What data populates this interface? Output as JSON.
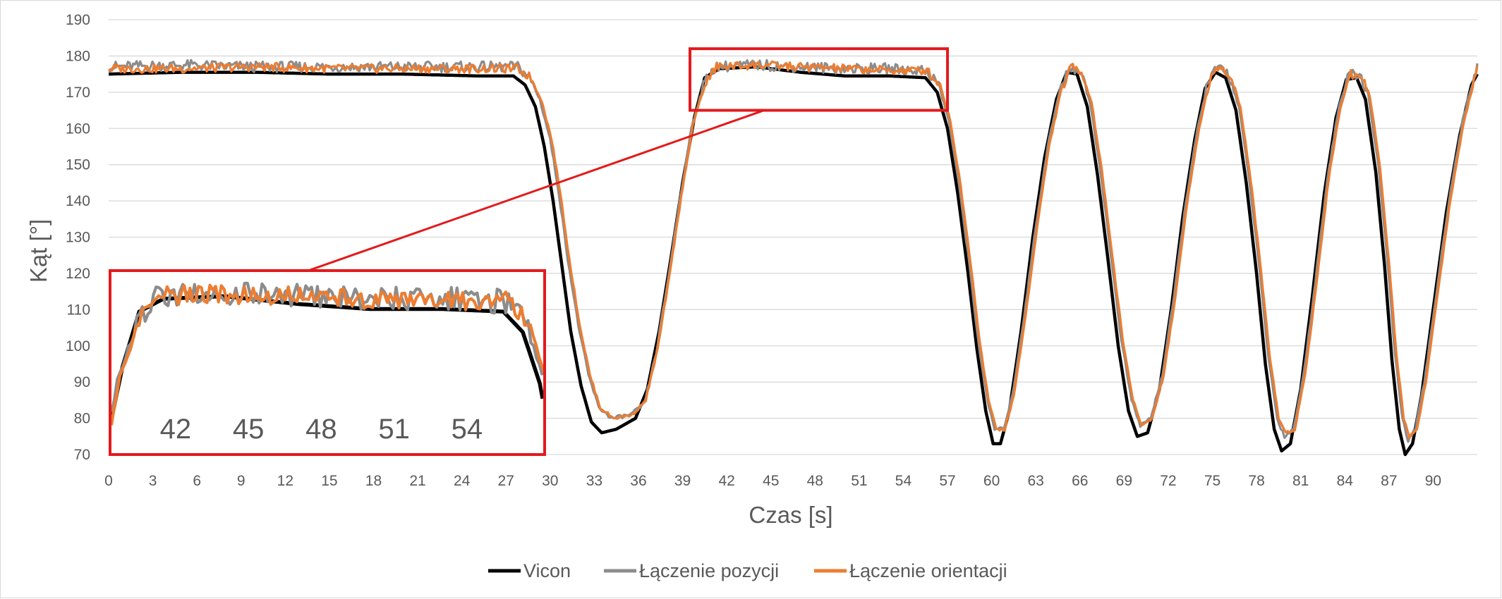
{
  "chart_data": {
    "type": "line",
    "title": "",
    "xlabel": "Czas [s]",
    "ylabel": "Kąt [°]",
    "xlim": [
      0,
      93
    ],
    "ylim": [
      70,
      190
    ],
    "grid": "horizontal",
    "legend_position": "bottom",
    "x_ticks": [
      "0",
      "3",
      "6",
      "9",
      "12",
      "15",
      "18",
      "21",
      "24",
      "27",
      "30",
      "33",
      "36",
      "39",
      "42",
      "45",
      "48",
      "51",
      "54",
      "57",
      "60",
      "63",
      "66",
      "69",
      "72",
      "75",
      "78",
      "81",
      "84",
      "87",
      "90"
    ],
    "y_ticks": [
      "70",
      "80",
      "90",
      "100",
      "110",
      "120",
      "130",
      "140",
      "150",
      "160",
      "170",
      "180",
      "190"
    ],
    "series": [
      {
        "name": "Vicon",
        "color": "#000000",
        "points": [
          [
            0,
            175
          ],
          [
            5,
            175.5
          ],
          [
            10,
            175.5
          ],
          [
            15,
            175
          ],
          [
            20,
            175
          ],
          [
            25,
            174.5
          ],
          [
            27.5,
            174.5
          ],
          [
            28.3,
            172
          ],
          [
            29,
            166
          ],
          [
            29.6,
            155
          ],
          [
            30.2,
            140
          ],
          [
            30.8,
            122
          ],
          [
            31.4,
            104
          ],
          [
            32.1,
            89
          ],
          [
            32.8,
            79
          ],
          [
            33.5,
            76
          ],
          [
            34.5,
            77
          ],
          [
            35.8,
            80
          ],
          [
            36.6,
            88
          ],
          [
            37.4,
            104
          ],
          [
            38.2,
            124
          ],
          [
            39.0,
            145
          ],
          [
            39.8,
            163
          ],
          [
            40.5,
            174
          ],
          [
            41.5,
            176.5
          ],
          [
            44,
            177
          ],
          [
            47,
            175.5
          ],
          [
            50,
            174.5
          ],
          [
            53,
            174.5
          ],
          [
            55.5,
            174
          ],
          [
            56.3,
            170
          ],
          [
            57,
            160
          ],
          [
            57.7,
            142
          ],
          [
            58.4,
            120
          ],
          [
            59.0,
            99
          ],
          [
            59.6,
            82
          ],
          [
            60.1,
            73
          ],
          [
            60.6,
            73
          ],
          [
            61.2,
            82
          ],
          [
            62.0,
            104
          ],
          [
            62.8,
            130
          ],
          [
            63.6,
            152
          ],
          [
            64.4,
            168
          ],
          [
            65.1,
            175.5
          ],
          [
            65.8,
            175
          ],
          [
            66.5,
            166
          ],
          [
            67.2,
            147
          ],
          [
            67.9,
            124
          ],
          [
            68.6,
            100
          ],
          [
            69.3,
            82
          ],
          [
            69.9,
            75
          ],
          [
            70.6,
            76
          ],
          [
            71.4,
            88
          ],
          [
            72.2,
            110
          ],
          [
            73.0,
            136
          ],
          [
            73.8,
            157
          ],
          [
            74.5,
            171
          ],
          [
            75.2,
            175.5
          ],
          [
            75.9,
            174
          ],
          [
            76.6,
            165
          ],
          [
            77.3,
            145
          ],
          [
            78.0,
            120
          ],
          [
            78.6,
            95
          ],
          [
            79.2,
            77
          ],
          [
            79.7,
            71
          ],
          [
            80.3,
            73
          ],
          [
            81.0,
            88
          ],
          [
            81.8,
            114
          ],
          [
            82.6,
            142
          ],
          [
            83.4,
            163
          ],
          [
            84.1,
            173.5
          ],
          [
            84.8,
            174
          ],
          [
            85.4,
            168
          ],
          [
            86.1,
            148
          ],
          [
            86.7,
            122
          ],
          [
            87.2,
            96
          ],
          [
            87.7,
            77
          ],
          [
            88.1,
            70
          ],
          [
            88.6,
            73
          ],
          [
            89.2,
            86
          ],
          [
            90.0,
            110
          ],
          [
            90.9,
            137
          ],
          [
            91.8,
            158
          ],
          [
            92.6,
            172
          ],
          [
            93,
            175
          ]
        ]
      },
      {
        "name": "Łączenie pozycji",
        "color": "#8c8c8c",
        "points": [
          [
            0,
            177
          ],
          [
            5,
            177.5
          ],
          [
            10,
            177
          ],
          [
            15,
            177
          ],
          [
            20,
            177
          ],
          [
            25,
            177
          ],
          [
            27.8,
            177
          ],
          [
            28.6,
            174
          ],
          [
            29.3,
            168
          ],
          [
            30.0,
            157
          ],
          [
            30.6,
            142
          ],
          [
            31.2,
            124
          ],
          [
            31.9,
            106
          ],
          [
            32.6,
            92
          ],
          [
            33.3,
            83
          ],
          [
            34.2,
            80
          ],
          [
            35.5,
            81
          ],
          [
            36.4,
            84
          ],
          [
            37.2,
            98
          ],
          [
            38.0,
            118
          ],
          [
            38.8,
            140
          ],
          [
            39.6,
            160
          ],
          [
            40.4,
            172
          ],
          [
            41.2,
            177
          ],
          [
            44,
            177.5
          ],
          [
            47,
            177
          ],
          [
            50,
            176.5
          ],
          [
            53,
            176.5
          ],
          [
            55.6,
            176
          ],
          [
            56.4,
            172
          ],
          [
            57.1,
            162
          ],
          [
            57.8,
            144
          ],
          [
            58.5,
            122
          ],
          [
            59.1,
            101
          ],
          [
            59.7,
            85
          ],
          [
            60.2,
            77
          ],
          [
            60.8,
            77
          ],
          [
            61.4,
            86
          ],
          [
            62.2,
            108
          ],
          [
            63.0,
            133
          ],
          [
            63.8,
            155
          ],
          [
            64.6,
            170
          ],
          [
            65.3,
            177
          ],
          [
            66.0,
            176
          ],
          [
            66.7,
            167
          ],
          [
            67.4,
            148
          ],
          [
            68.1,
            125
          ],
          [
            68.8,
            102
          ],
          [
            69.5,
            85
          ],
          [
            70.1,
            78
          ],
          [
            70.8,
            80
          ],
          [
            71.6,
            92
          ],
          [
            72.4,
            114
          ],
          [
            73.2,
            140
          ],
          [
            74.0,
            160
          ],
          [
            74.7,
            173
          ],
          [
            75.4,
            177
          ],
          [
            76.1,
            175
          ],
          [
            76.8,
            166
          ],
          [
            77.5,
            146
          ],
          [
            78.2,
            121
          ],
          [
            78.8,
            97
          ],
          [
            79.4,
            80
          ],
          [
            79.9,
            75
          ],
          [
            80.5,
            77
          ],
          [
            81.2,
            92
          ],
          [
            82.0,
            118
          ],
          [
            82.8,
            146
          ],
          [
            83.6,
            166
          ],
          [
            84.3,
            175
          ],
          [
            85.0,
            175
          ],
          [
            85.6,
            169
          ],
          [
            86.3,
            149
          ],
          [
            86.9,
            123
          ],
          [
            87.4,
            98
          ],
          [
            87.9,
            80
          ],
          [
            88.3,
            74
          ],
          [
            88.8,
            77
          ],
          [
            89.4,
            90
          ],
          [
            90.2,
            114
          ],
          [
            91.1,
            141
          ],
          [
            92.0,
            162
          ],
          [
            92.8,
            175
          ],
          [
            93,
            177
          ]
        ]
      },
      {
        "name": "Łączenie orientacji",
        "color": "#ed7d31",
        "points": [
          [
            0,
            176.5
          ],
          [
            5,
            176.5
          ],
          [
            10,
            177
          ],
          [
            15,
            176.5
          ],
          [
            20,
            176.5
          ],
          [
            25,
            176.5
          ],
          [
            27.8,
            176.5
          ],
          [
            28.7,
            174
          ],
          [
            29.4,
            168
          ],
          [
            30.1,
            157
          ],
          [
            30.7,
            142
          ],
          [
            31.3,
            124
          ],
          [
            32.0,
            106
          ],
          [
            32.7,
            92
          ],
          [
            33.4,
            83
          ],
          [
            34.3,
            80
          ],
          [
            35.6,
            81
          ],
          [
            36.5,
            85
          ],
          [
            37.3,
            99
          ],
          [
            38.1,
            119
          ],
          [
            38.9,
            141
          ],
          [
            39.7,
            161
          ],
          [
            40.5,
            172
          ],
          [
            41.3,
            177
          ],
          [
            44,
            177.5
          ],
          [
            47,
            177
          ],
          [
            50,
            176.5
          ],
          [
            53,
            176
          ],
          [
            55.6,
            176
          ],
          [
            56.5,
            172
          ],
          [
            57.2,
            162
          ],
          [
            57.9,
            144
          ],
          [
            58.6,
            122
          ],
          [
            59.2,
            101
          ],
          [
            59.8,
            85
          ],
          [
            60.3,
            77
          ],
          [
            60.9,
            77
          ],
          [
            61.5,
            86
          ],
          [
            62.3,
            108
          ],
          [
            63.1,
            133
          ],
          [
            63.9,
            155
          ],
          [
            64.7,
            170
          ],
          [
            65.4,
            177
          ],
          [
            66.1,
            176
          ],
          [
            66.8,
            167
          ],
          [
            67.5,
            148
          ],
          [
            68.2,
            125
          ],
          [
            68.9,
            102
          ],
          [
            69.6,
            85
          ],
          [
            70.2,
            78
          ],
          [
            70.9,
            80
          ],
          [
            71.7,
            92
          ],
          [
            72.5,
            114
          ],
          [
            73.3,
            140
          ],
          [
            74.1,
            160
          ],
          [
            74.8,
            173
          ],
          [
            75.5,
            177
          ],
          [
            76.2,
            175
          ],
          [
            76.9,
            166
          ],
          [
            77.6,
            146
          ],
          [
            78.3,
            121
          ],
          [
            78.9,
            97
          ],
          [
            79.5,
            80
          ],
          [
            80.0,
            76
          ],
          [
            80.6,
            77
          ],
          [
            81.3,
            92
          ],
          [
            82.1,
            118
          ],
          [
            82.9,
            146
          ],
          [
            83.7,
            166
          ],
          [
            84.4,
            175
          ],
          [
            85.1,
            175
          ],
          [
            85.7,
            169
          ],
          [
            86.4,
            149
          ],
          [
            87.0,
            123
          ],
          [
            87.5,
            98
          ],
          [
            88.0,
            80
          ],
          [
            88.4,
            75
          ],
          [
            88.9,
            77
          ],
          [
            89.5,
            90
          ],
          [
            90.3,
            114
          ],
          [
            91.2,
            141
          ],
          [
            92.1,
            162
          ],
          [
            92.9,
            175
          ],
          [
            93,
            176.5
          ]
        ]
      }
    ],
    "zoom_box": {
      "x": [
        39.5,
        57
      ],
      "y": [
        165,
        182
      ]
    },
    "inset": {
      "x_ticks": [
        "42",
        "45",
        "48",
        "51",
        "54"
      ]
    },
    "legend": [
      "Vicon",
      "Łączenie pozycji",
      "Łączenie orientacji"
    ]
  }
}
